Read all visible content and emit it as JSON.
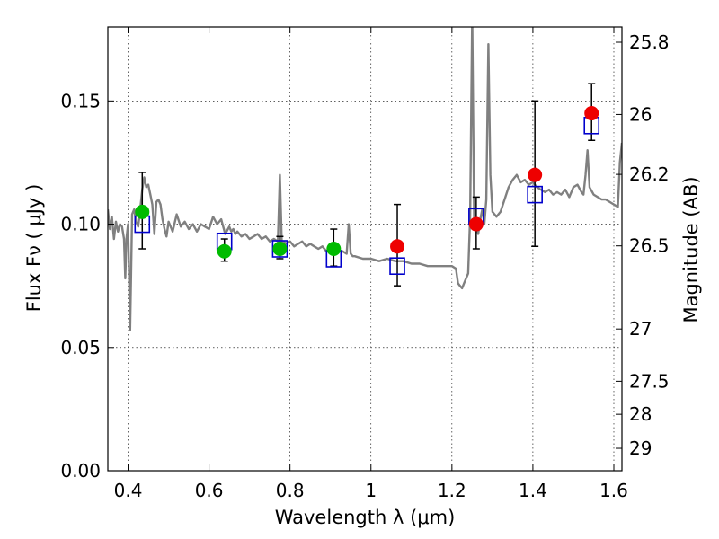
{
  "chart_data": {
    "type": "scatter",
    "title": "",
    "xlabel": "Wavelength  λ (μm)",
    "ylabel": "Flux  Fν  ( μJy )",
    "ylabel_right": "Magnitude (AB)",
    "xlim": [
      0.35,
      1.62
    ],
    "ylim": [
      0.0,
      0.18
    ],
    "grid": true,
    "x_ticks": [
      0.4,
      0.6,
      0.8,
      1.0,
      1.2,
      1.4,
      1.6
    ],
    "x_tick_labels": [
      "0.4",
      "0.6",
      "0.8",
      "1",
      "1.2",
      "1.4",
      "1.6"
    ],
    "y_ticks": [
      0.0,
      0.05,
      0.1,
      0.15
    ],
    "y_tick_labels": [
      "0.00",
      "0.05",
      "0.10",
      "0.15"
    ],
    "right_ticks": [
      {
        "label": "25.8",
        "flux": 0.1738
      },
      {
        "label": "26",
        "flux": 0.1445
      },
      {
        "label": "26.2",
        "flux": 0.1202
      },
      {
        "label": "26.5",
        "flux": 0.0912
      },
      {
        "label": "27",
        "flux": 0.0575
      },
      {
        "label": "27.5",
        "flux": 0.0363
      },
      {
        "label": "28",
        "flux": 0.0229
      },
      {
        "label": "29",
        "flux": 0.0091
      }
    ],
    "series": [
      {
        "kind": "spectrum",
        "color": "#808080",
        "x": [
          0.35,
          0.355,
          0.36,
          0.365,
          0.37,
          0.375,
          0.38,
          0.385,
          0.39,
          0.393,
          0.396,
          0.4,
          0.405,
          0.41,
          0.415,
          0.42,
          0.425,
          0.43,
          0.435,
          0.44,
          0.445,
          0.45,
          0.455,
          0.46,
          0.465,
          0.47,
          0.475,
          0.48,
          0.485,
          0.49,
          0.495,
          0.5,
          0.51,
          0.52,
          0.53,
          0.54,
          0.55,
          0.56,
          0.57,
          0.58,
          0.59,
          0.6,
          0.61,
          0.62,
          0.63,
          0.64,
          0.65,
          0.655,
          0.66,
          0.665,
          0.67,
          0.68,
          0.69,
          0.7,
          0.71,
          0.72,
          0.73,
          0.74,
          0.75,
          0.76,
          0.77,
          0.775,
          0.78,
          0.785,
          0.79,
          0.8,
          0.81,
          0.82,
          0.83,
          0.84,
          0.85,
          0.86,
          0.87,
          0.88,
          0.89,
          0.9,
          0.91,
          0.92,
          0.93,
          0.94,
          0.945,
          0.95,
          0.955,
          0.96,
          0.98,
          1.0,
          1.02,
          1.04,
          1.06,
          1.08,
          1.1,
          1.12,
          1.14,
          1.16,
          1.18,
          1.2,
          1.21,
          1.215,
          1.22,
          1.225,
          1.23,
          1.24,
          1.245,
          1.25,
          1.255,
          1.26,
          1.265,
          1.27,
          1.275,
          1.28,
          1.285,
          1.29,
          1.295,
          1.3,
          1.31,
          1.32,
          1.33,
          1.34,
          1.35,
          1.36,
          1.37,
          1.38,
          1.39,
          1.4,
          1.41,
          1.42,
          1.43,
          1.44,
          1.45,
          1.46,
          1.47,
          1.48,
          1.49,
          1.5,
          1.51,
          1.52,
          1.525,
          1.53,
          1.535,
          1.54,
          1.55,
          1.56,
          1.57,
          1.58,
          1.59,
          1.6,
          1.61,
          1.615,
          1.62
        ],
        "y": [
          0.106,
          0.098,
          0.103,
          0.094,
          0.101,
          0.097,
          0.1,
          0.099,
          0.094,
          0.078,
          0.094,
          0.1,
          0.057,
          0.104,
          0.106,
          0.101,
          0.099,
          0.106,
          0.114,
          0.119,
          0.115,
          0.116,
          0.112,
          0.108,
          0.096,
          0.109,
          0.11,
          0.108,
          0.102,
          0.098,
          0.095,
          0.101,
          0.097,
          0.104,
          0.099,
          0.101,
          0.098,
          0.1,
          0.097,
          0.1,
          0.099,
          0.098,
          0.103,
          0.1,
          0.102,
          0.096,
          0.099,
          0.097,
          0.098,
          0.096,
          0.097,
          0.095,
          0.096,
          0.094,
          0.095,
          0.096,
          0.094,
          0.095,
          0.093,
          0.094,
          0.093,
          0.12,
          0.09,
          0.093,
          0.092,
          0.093,
          0.091,
          0.092,
          0.093,
          0.091,
          0.092,
          0.091,
          0.09,
          0.091,
          0.089,
          0.09,
          0.088,
          0.089,
          0.089,
          0.088,
          0.1,
          0.088,
          0.087,
          0.087,
          0.086,
          0.086,
          0.085,
          0.086,
          0.085,
          0.085,
          0.084,
          0.084,
          0.083,
          0.083,
          0.083,
          0.083,
          0.082,
          0.076,
          0.075,
          0.074,
          0.076,
          0.08,
          0.103,
          0.185,
          0.1,
          0.1,
          0.096,
          0.102,
          0.106,
          0.1,
          0.11,
          0.173,
          0.12,
          0.105,
          0.103,
          0.105,
          0.11,
          0.115,
          0.118,
          0.12,
          0.117,
          0.118,
          0.116,
          0.117,
          0.115,
          0.114,
          0.113,
          0.114,
          0.112,
          0.113,
          0.112,
          0.114,
          0.111,
          0.115,
          0.116,
          0.113,
          0.112,
          0.12,
          0.13,
          0.115,
          0.112,
          0.111,
          0.11,
          0.11,
          0.109,
          0.108,
          0.107,
          0.125,
          0.133
        ]
      },
      {
        "kind": "model_boxes",
        "color": "#0000cc",
        "x": [
          0.435,
          0.638,
          0.775,
          0.908,
          1.065,
          1.26,
          1.405,
          1.545
        ],
        "y": [
          0.1,
          0.093,
          0.09,
          0.086,
          0.083,
          0.103,
          0.112,
          0.14
        ]
      },
      {
        "kind": "observed_green",
        "color": "#00bb00",
        "x": [
          0.435,
          0.638,
          0.775,
          0.908
        ],
        "y": [
          0.105,
          0.089,
          0.09,
          0.09
        ],
        "yerr_low": [
          0.015,
          0.004,
          0.004,
          0.007
        ],
        "yerr_high": [
          0.016,
          0.005,
          0.005,
          0.008
        ]
      },
      {
        "kind": "observed_red",
        "color": "#ee0000",
        "x": [
          1.065,
          1.26,
          1.405,
          1.545
        ],
        "y": [
          0.091,
          0.1,
          0.12,
          0.145
        ],
        "yerr_low": [
          0.016,
          0.01,
          0.029,
          0.011
        ],
        "yerr_high": [
          0.017,
          0.011,
          0.03,
          0.012
        ]
      }
    ]
  }
}
